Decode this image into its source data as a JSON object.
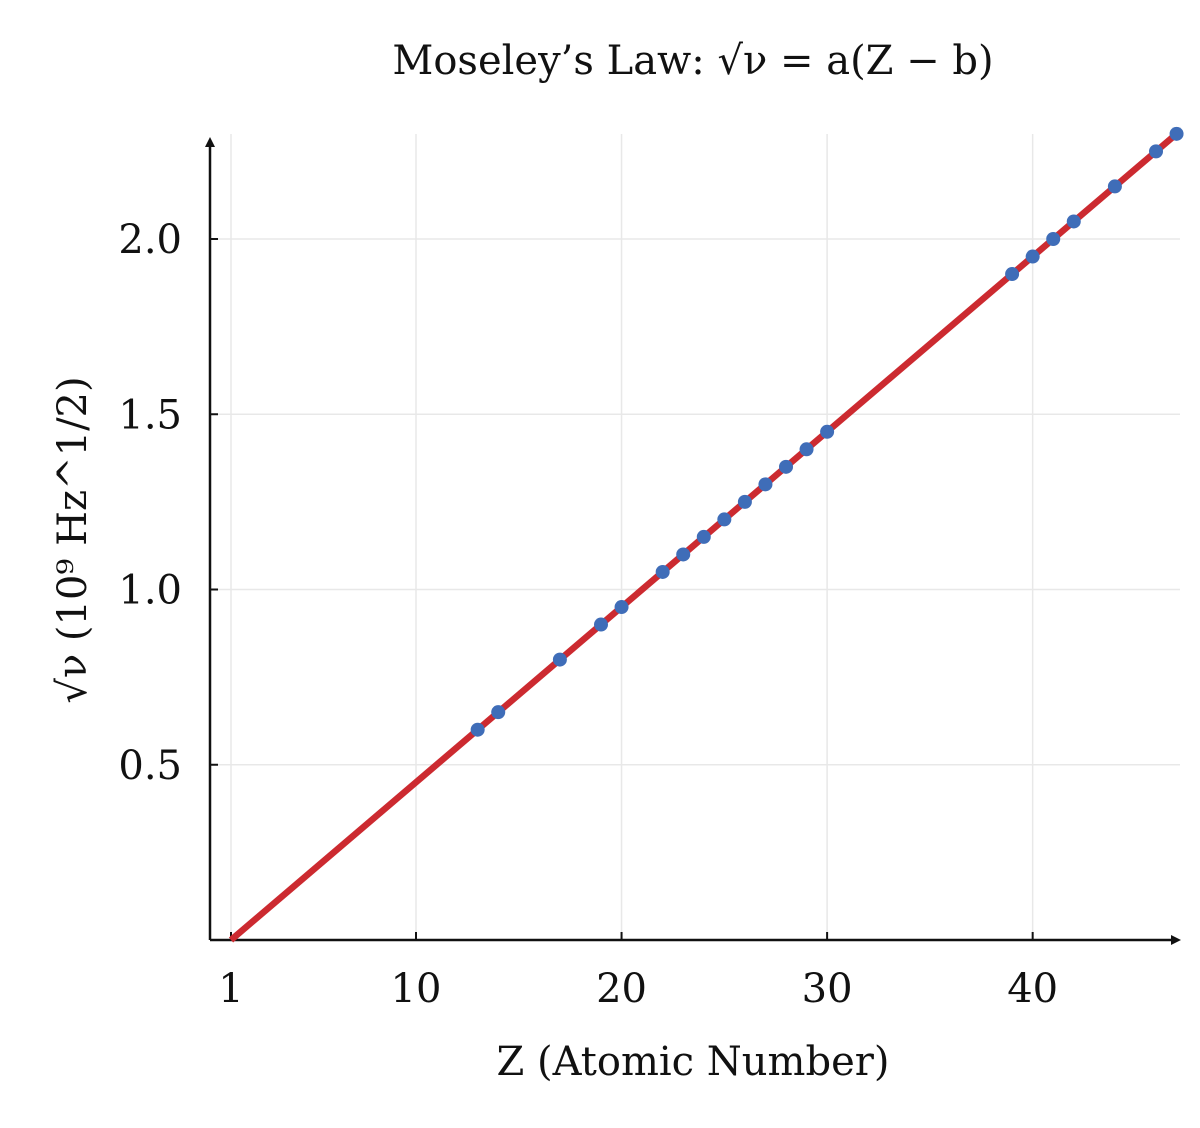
{
  "chart_data": {
    "type": "scatter",
    "title": "Moseley’s Law: √ν = a(Z − b)",
    "xlabel": "Z (Atomic Number)",
    "ylabel": "√ν (10⁹ Hz^1/2)",
    "xlim": [
      0,
      47
    ],
    "ylim": [
      0,
      2.3
    ],
    "xticks": [
      1,
      10,
      20,
      30,
      40
    ],
    "yticks": [
      0.5,
      1.0,
      1.5,
      2.0
    ],
    "xtick_labels": [
      "1",
      "10",
      "20",
      "30",
      "40"
    ],
    "ytick_labels": [
      "0.5",
      "1.0",
      "1.5",
      "2.0"
    ],
    "grid": true,
    "series": [
      {
        "kind": "scatter",
        "x": [
          13,
          14,
          17,
          19,
          20,
          22,
          23,
          24,
          25,
          26,
          27,
          28,
          29,
          30,
          39,
          40,
          41,
          42,
          44,
          46,
          47
        ],
        "y": [
          0.6,
          0.65,
          0.8,
          0.9,
          0.95,
          1.05,
          1.1,
          1.15,
          1.2,
          1.25,
          1.3,
          1.35,
          1.4,
          1.45,
          1.9,
          1.95,
          2.0,
          2.05,
          2.15,
          2.25,
          2.3
        ]
      },
      {
        "kind": "line",
        "x": [
          1,
          47
        ],
        "y": [
          0.0,
          2.3
        ]
      }
    ],
    "colors": {
      "points": "#3f6db8",
      "fit_line": "#cc2a30",
      "axis": "#111111",
      "grid": "#e8e8e8"
    }
  }
}
